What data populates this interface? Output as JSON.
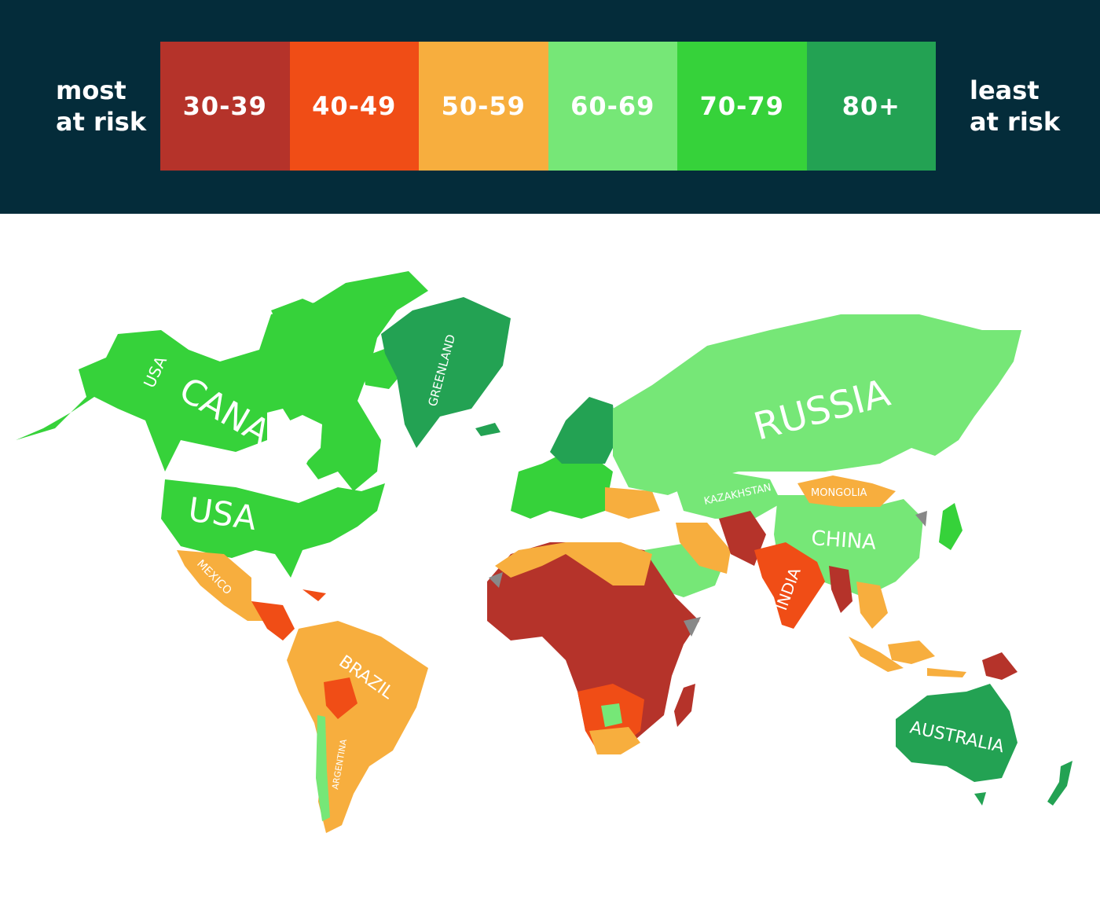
{
  "header": {
    "left_label": [
      "most",
      "at risk"
    ],
    "right_label": [
      "least",
      "at risk"
    ]
  },
  "legend": [
    {
      "label": "30-39",
      "color": "#b5332a"
    },
    {
      "label": "40-49",
      "color": "#f04d16"
    },
    {
      "label": "50-59",
      "color": "#f7ae3e"
    },
    {
      "label": "60-69",
      "color": "#76e777"
    },
    {
      "label": "70-79",
      "color": "#36d23a"
    },
    {
      "label": "80+",
      "color": "#23a253"
    }
  ],
  "colors": {
    "background": "#042c3a",
    "no_data": "#888888"
  },
  "map_labels": {
    "usa_alaska": "USA",
    "canada": "CANADA",
    "usa": "USA",
    "greenland": "GREENLAND",
    "russia": "RUSSIA",
    "kazakhstan": "KAZAKHSTAN",
    "mongolia": "MONGOLIA",
    "china": "CHINA",
    "india": "INDIA",
    "mexico": "MEXICO",
    "brazil": "BRAZIL",
    "argentina": "ARGENTINA",
    "australia": "AUSTRALIA"
  }
}
